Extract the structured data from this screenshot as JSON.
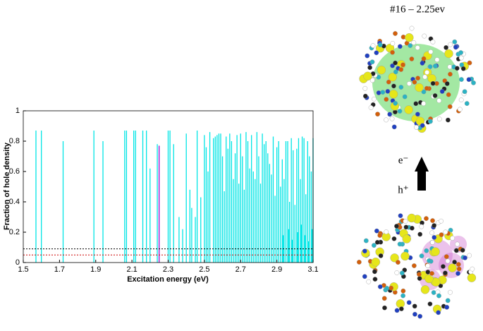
{
  "chart_data": {
    "type": "stem",
    "xlabel": "Excitation energy (eV)",
    "ylabel": "Fraction of hole density",
    "xlim": [
      1.5,
      3.1
    ],
    "xticks": [
      1.5,
      1.7,
      1.9,
      2.1,
      2.3,
      2.5,
      2.7,
      2.9,
      3.1
    ],
    "ylim": [
      0,
      1
    ],
    "yticks": [
      0,
      0.2,
      0.4,
      0.6,
      0.8,
      1
    ],
    "series": [
      {
        "color": "#00e5e5",
        "x": [
          1.57,
          1.6,
          1.72,
          1.89,
          1.94,
          2.06,
          2.07,
          2.11,
          2.12,
          2.16,
          2.18,
          2.2,
          2.24,
          2.3,
          2.31,
          2.33,
          2.36,
          2.38,
          2.4,
          2.42,
          2.43,
          2.45,
          2.46,
          2.48,
          2.5,
          2.51,
          2.52,
          2.53,
          2.55,
          2.56,
          2.57,
          2.58,
          2.59,
          2.6,
          2.61,
          2.62,
          2.63,
          2.64,
          2.65,
          2.66,
          2.67,
          2.68,
          2.69,
          2.7,
          2.71,
          2.72,
          2.73,
          2.74,
          2.75,
          2.76,
          2.77,
          2.78,
          2.79,
          2.8,
          2.81,
          2.82,
          2.83,
          2.84,
          2.85,
          2.86,
          2.87,
          2.88,
          2.89,
          2.9,
          2.91,
          2.92,
          2.93,
          2.935,
          2.94,
          2.95,
          2.96,
          2.965,
          2.97,
          2.98,
          2.985,
          2.99,
          3.0,
          3.01,
          3.015,
          3.02,
          3.03,
          3.035,
          3.04,
          3.05,
          3.055,
          3.06,
          3.07,
          3.075,
          3.08,
          3.09,
          3.095,
          3.1
        ],
        "values": [
          0.87,
          0.87,
          0.8,
          0.87,
          0.8,
          0.87,
          0.87,
          0.87,
          0.87,
          0.87,
          0.87,
          0.62,
          0.78,
          0.87,
          0.87,
          0.78,
          0.3,
          0.22,
          0.85,
          0.48,
          0.36,
          0.3,
          0.87,
          0.43,
          0.84,
          0.76,
          0.6,
          0.86,
          0.82,
          0.83,
          0.84,
          0.85,
          0.85,
          0.7,
          0.47,
          0.83,
          0.75,
          0.85,
          0.8,
          0.55,
          0.72,
          0.84,
          0.52,
          0.85,
          0.7,
          0.48,
          0.86,
          0.8,
          0.62,
          0.84,
          0.6,
          0.55,
          0.86,
          0.7,
          0.52,
          0.85,
          0.78,
          0.8,
          0.72,
          0.65,
          0.58,
          0.83,
          0.44,
          0.76,
          0.8,
          0.5,
          0.68,
          0.18,
          0.55,
          0.8,
          0.8,
          0.22,
          0.4,
          0.82,
          0.15,
          0.74,
          0.38,
          0.75,
          0.2,
          0.82,
          0.55,
          0.25,
          0.83,
          0.82,
          0.18,
          0.45,
          0.8,
          0.14,
          0.7,
          0.6,
          0.22,
          0.82
        ]
      },
      {
        "color": "#9900cc",
        "x": [
          2.25
        ],
        "values": [
          0.77
        ]
      }
    ],
    "reference_lines": [
      {
        "value": 0.09,
        "color": "#000000"
      },
      {
        "value": 0.05,
        "color": "#cc0000"
      }
    ]
  },
  "panel": {
    "title": "#16 – 2.25ev",
    "electron_label": "e⁻",
    "hole_label": "h⁺"
  }
}
